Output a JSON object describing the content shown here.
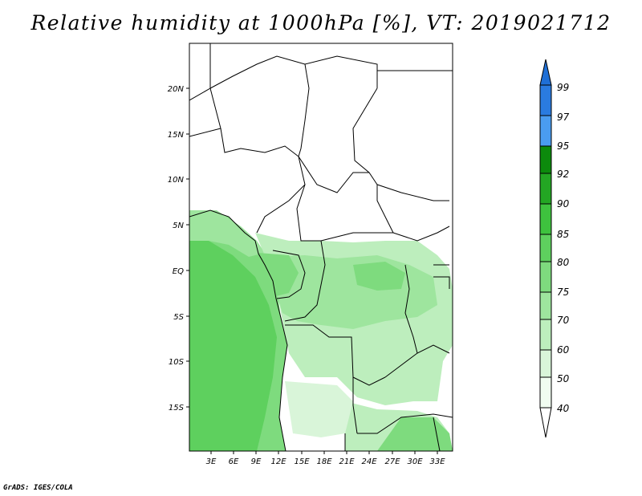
{
  "title": "Relative humidity at 1000hPa [%], VT: 2019021712",
  "credit": "GrADS: IGES/COLA",
  "lat_labels": [
    "20N",
    "15N",
    "10N",
    "5N",
    "EQ",
    "5S",
    "10S",
    "15S"
  ],
  "lon_labels": [
    "3E",
    "6E",
    "9E",
    "12E",
    "15E",
    "18E",
    "21E",
    "24E",
    "27E",
    "30E",
    "33E"
  ],
  "colorbar": {
    "levels": [
      "99",
      "97",
      "95",
      "92",
      "90",
      "85",
      "80",
      "75",
      "70",
      "60",
      "50",
      "40"
    ],
    "colors": [
      "#1f6fd6",
      "#2f82e6",
      "#4a9cf0",
      "#0c8a0c",
      "#23a623",
      "#3ec23e",
      "#5ed05e",
      "#7edb7e",
      "#9ee59e",
      "#bdeebd",
      "#d9f5d9",
      "#f0fcf0"
    ]
  }
}
